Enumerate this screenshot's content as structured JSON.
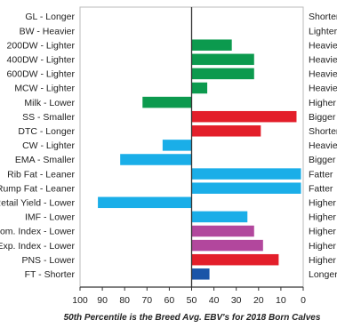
{
  "chart_data": {
    "type": "bar",
    "orientation": "horizontal",
    "x_axis": {
      "reversed": true,
      "range": [
        100,
        0
      ],
      "ticks": [
        100,
        90,
        80,
        70,
        60,
        50,
        40,
        30,
        20,
        10,
        0
      ]
    },
    "baseline": 50,
    "xlabel": "50th Percentile is the Breed Avg. EBV's for 2018 Born Calves",
    "colors": {
      "green": "#0c9a4e",
      "red": "#e31e2a",
      "blue": "#1aaee8",
      "magenta": "#b2479d",
      "navy": "#1a55a8",
      "axis": "#333333",
      "frame": "#bbbbbb"
    },
    "rows": [
      {
        "left": "GL - Longer",
        "right": "Shorter",
        "value": 50,
        "color": "green"
      },
      {
        "left": "BW - Heavier",
        "right": "Lighter",
        "value": 50,
        "color": "green"
      },
      {
        "left": "200DW - Lighter",
        "right": "Heavier",
        "value": 32,
        "color": "green"
      },
      {
        "left": "400DW - Lighter",
        "right": "Heavier",
        "value": 22,
        "color": "green"
      },
      {
        "left": "600DW - Lighter",
        "right": "Heavier",
        "value": 22,
        "color": "green"
      },
      {
        "left": "MCW - Lighter",
        "right": "Heavier",
        "value": 43,
        "color": "green"
      },
      {
        "left": "Milk - Lower",
        "right": "Higher",
        "value": 72,
        "color": "green"
      },
      {
        "left": "SS - Smaller",
        "right": "Bigger",
        "value": 3,
        "color": "red"
      },
      {
        "left": "DTC - Longer",
        "right": "Shorter",
        "value": 19,
        "color": "red"
      },
      {
        "left": "CW - Lighter",
        "right": "Heavier",
        "value": 63,
        "color": "blue"
      },
      {
        "left": "EMA - Smaller",
        "right": "Bigger",
        "value": 82,
        "color": "blue"
      },
      {
        "left": "Rib Fat - Leaner",
        "right": "Fatter",
        "value": 1,
        "color": "blue"
      },
      {
        "left": "Rump Fat - Leaner",
        "right": "Fatter",
        "value": 1,
        "color": "blue"
      },
      {
        "left": "Retail Yield - Lower",
        "right": "Higher",
        "value": 92,
        "color": "blue"
      },
      {
        "left": "IMF - Lower",
        "right": "Higher",
        "value": 25,
        "color": "blue"
      },
      {
        "left": "Dom. Index - Lower",
        "right": "Higher",
        "value": 22,
        "color": "magenta"
      },
      {
        "left": "Exp. Index - Lower",
        "right": "Higher",
        "value": 18,
        "color": "magenta"
      },
      {
        "left": "PNS - Lower",
        "right": "Higher",
        "value": 11,
        "color": "red"
      },
      {
        "left": "FT - Shorter",
        "right": "Longer",
        "value": 42,
        "color": "navy"
      }
    ]
  }
}
